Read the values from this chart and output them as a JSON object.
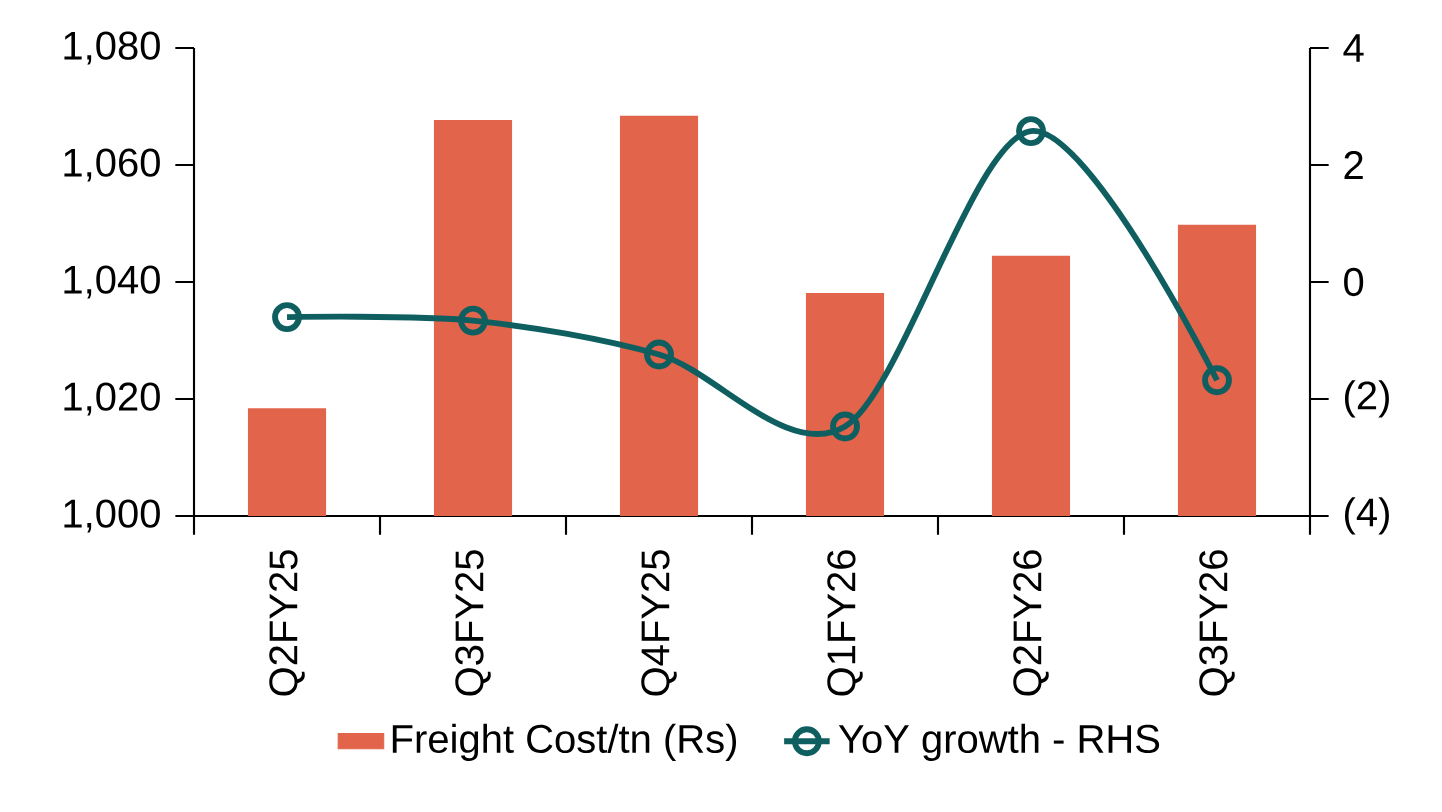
{
  "chart_data": {
    "type": "bar",
    "categories": [
      "Q2FY25",
      "Q3FY25",
      "Q4FY25",
      "Q1FY26",
      "Q2FY26",
      "Q3FY26"
    ],
    "series": [
      {
        "name": "Freight Cost/tn (Rs)",
        "color": "#e2644b",
        "values": [
          1018.4,
          1067.7,
          1068.4,
          1038.1,
          1044.5,
          1049.8
        ]
      },
      {
        "name": "YoY growth - RHS",
        "type": "line",
        "axis": "y2",
        "color": "#0f5f61",
        "marker": "circle",
        "values": [
          -0.6,
          -0.66,
          -1.24,
          -2.47,
          2.58,
          -1.68
        ]
      }
    ],
    "ylim": [
      1000,
      1080
    ],
    "yticks": [
      {
        "value": 1000,
        "label": "1,000"
      },
      {
        "value": 1020,
        "label": "1,020"
      },
      {
        "value": 1040,
        "label": "1,040"
      },
      {
        "value": 1060,
        "label": "1,060"
      },
      {
        "value": 1080,
        "label": "1,080"
      }
    ],
    "y2lim": [
      -4,
      4
    ],
    "y2ticks": [
      {
        "value": -4,
        "label": "(4)"
      },
      {
        "value": -2,
        "label": "(2)"
      },
      0,
      2,
      4
    ],
    "legend": "bottom",
    "grid": false
  }
}
